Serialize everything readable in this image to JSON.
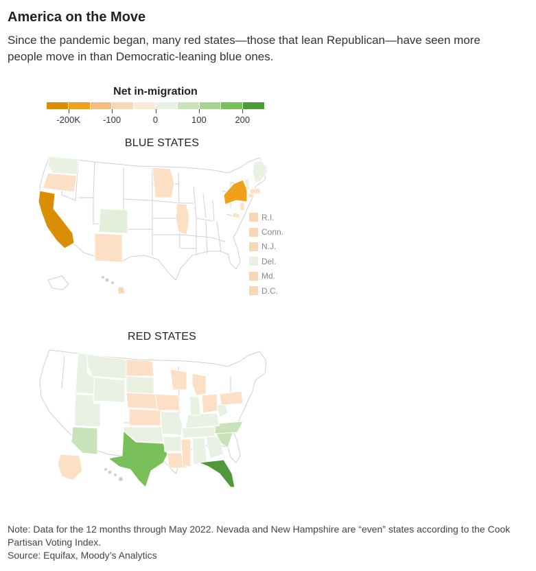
{
  "title": "America on the Move",
  "subtitle": "Since the pandemic began, many red states—those that lean Republican—have seen more people move in than Democratic-leaning blue ones.",
  "legend": {
    "title": "Net in-migration",
    "colors": [
      "#d98e04",
      "#f0a11c",
      "#f5bd7f",
      "#f9d6b4",
      "#fbe8d5",
      "#e9f2e2",
      "#c8e2b9",
      "#a5d390",
      "#79bf5a",
      "#4e9a3a"
    ],
    "ticks": [
      {
        "label": "-200K",
        "value": -200
      },
      {
        "label": "-100",
        "value": -100
      },
      {
        "label": "0",
        "value": 0
      },
      {
        "label": "100",
        "value": 100
      },
      {
        "label": "200",
        "value": 200
      }
    ],
    "domain": [
      -250,
      250
    ]
  },
  "blue_states": {
    "heading": "BLUE STATES",
    "small_states": [
      {
        "label": "R.I.",
        "color": "#f9d6b4"
      },
      {
        "label": "Conn.",
        "color": "#f9d6b4"
      },
      {
        "label": "N.J.",
        "color": "#f9d6b4"
      },
      {
        "label": "Del.",
        "color": "#e9f2e2"
      },
      {
        "label": "Md.",
        "color": "#f9d6b4"
      },
      {
        "label": "D.C.",
        "color": "#f9d6b4"
      }
    ]
  },
  "red_states": {
    "heading": "RED STATES"
  },
  "note": "Note: Data for the 12 months through May 2022. Nevada and New Hampshire are “even” states according to the Cook Partisan Voting Index.",
  "source": "Source: Equifax, Moody’s Analytics"
}
